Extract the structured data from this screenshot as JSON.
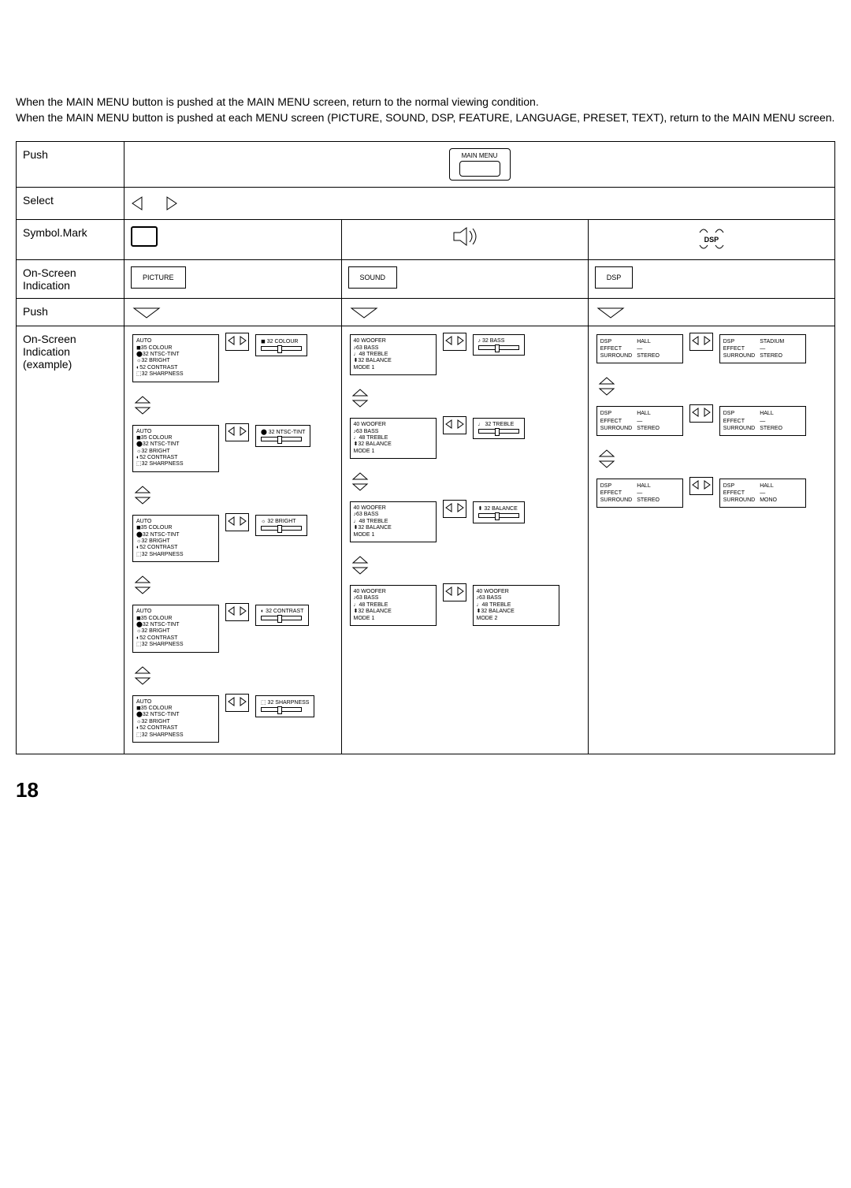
{
  "intro": {
    "line1": "When the MAIN MENU button is pushed at the MAIN MENU screen, return to the normal viewing condition.",
    "line2": "When the MAIN MENU button is pushed at each MENU screen (PICTURE, SOUND, DSP, FEATURE, LANGUAGE, PRESET, TEXT), return to the MAIN MENU screen."
  },
  "rowLabels": {
    "push1": "Push",
    "select": "Select",
    "symbol": "Symbol.Mark",
    "osd1": "On-Screen Indication",
    "push2": "Push",
    "osd2": "On-Screen Indication (example)"
  },
  "mainMenuBtn": "MAIN MENU",
  "osdPanels": {
    "picture": "PICTURE",
    "sound": "SOUND",
    "dsp": "DSP"
  },
  "dspSymbol": "DSP",
  "pictureMenu": {
    "items": [
      "AUTO",
      "◼35 COLOUR",
      "⬤32 NTSC-TINT",
      "☼32 BRIGHT",
      "◐52 CONTRAST",
      "⬚32 SHARPNESS"
    ],
    "adjust": [
      "◼ 32 COLOUR",
      "⬤ 32 NTSC-TINT",
      "☼ 32 BRIGHT",
      "◐ 32 CONTRAST",
      "⬚ 32 SHARPNESS"
    ]
  },
  "soundMenu": {
    "items": [
      "40 WOOFER",
      "♪63 BASS",
      "♩48 TREBLE",
      "⬍32 BALANCE",
      "MODE 1"
    ],
    "adjust": [
      "♪ 32 BASS",
      "♩ 32 TREBLE",
      "⬍ 32 BALANCE"
    ],
    "mode2Items": [
      "40 WOOFER",
      "♪63 BASS",
      "♩48 TREBLE",
      "⬍32 BALANCE",
      "MODE 2"
    ]
  },
  "dspMenu": {
    "leftCols": [
      "DSP",
      "EFFECT",
      "SURROUND"
    ],
    "rightCols": [
      [
        "HALL",
        "—",
        "STEREO"
      ],
      [
        "STADIUM",
        "—",
        "STEREO"
      ],
      [
        "HALL",
        "—",
        "STEREO"
      ],
      [
        "HALL",
        "—",
        "STEREO"
      ],
      [
        "HALL",
        "—",
        "MONO"
      ]
    ]
  },
  "pageNumber": "18"
}
